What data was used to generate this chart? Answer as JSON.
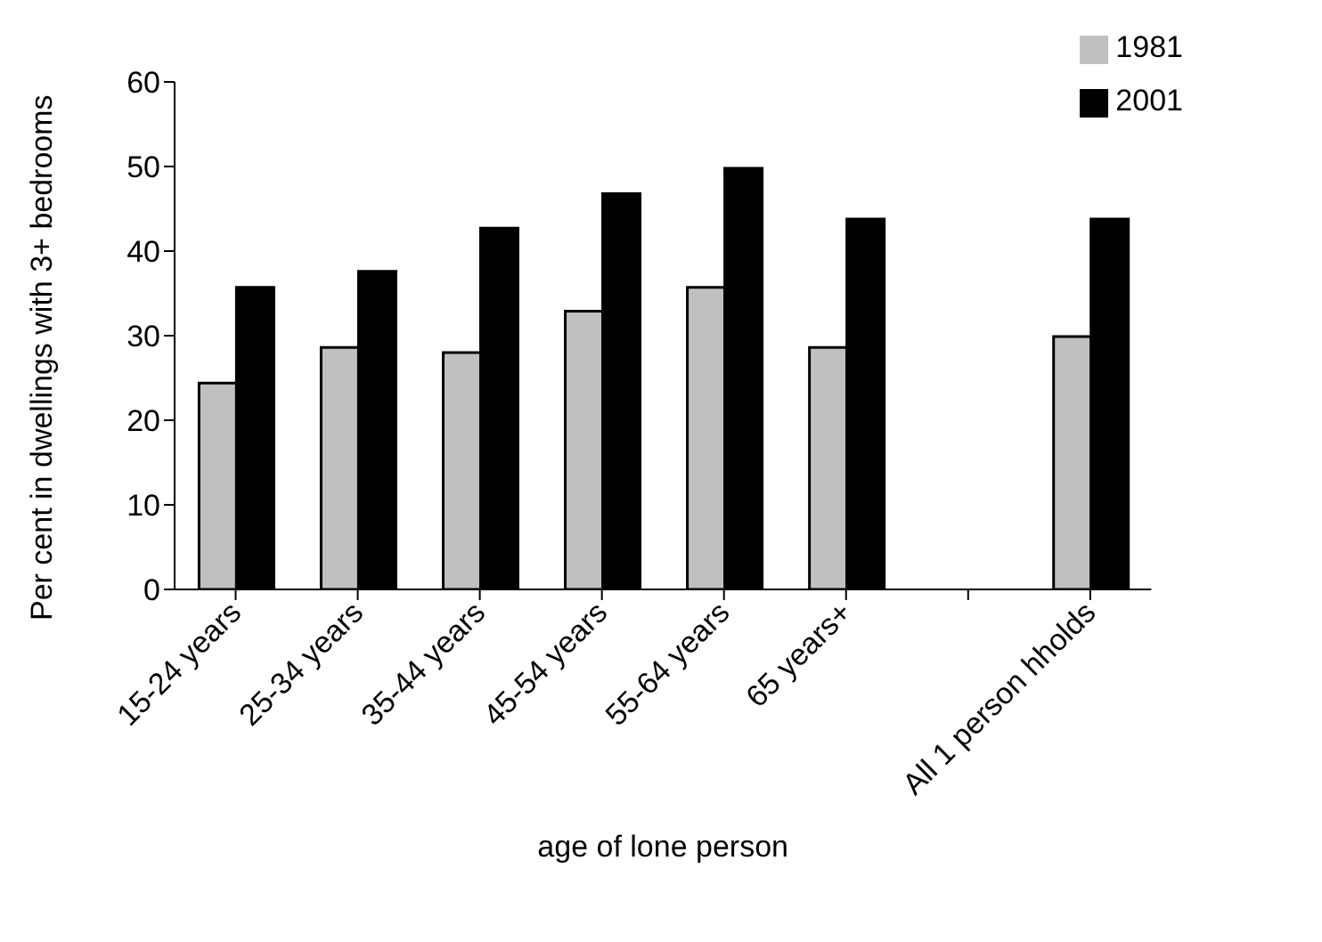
{
  "chart_data": {
    "type": "bar",
    "xlabel": "age of lone person",
    "ylabel": "Per cent in dwellings with 3+ bedrooms",
    "categories": [
      "15-24 years",
      "25-34 years",
      "35-44 years",
      "45-54 years",
      "55-64 years",
      "65 years+",
      null,
      "All 1 person hholds"
    ],
    "series": [
      {
        "name": "1981",
        "color": "#c0c0c0",
        "values": [
          24.4,
          28.6,
          28.0,
          32.9,
          35.7,
          28.6,
          null,
          29.9
        ]
      },
      {
        "name": "2001",
        "color": "#000000",
        "values": [
          35.7,
          37.6,
          42.7,
          46.8,
          49.8,
          43.8,
          null,
          43.8
        ]
      }
    ],
    "ylim": [
      0,
      60
    ],
    "yticks": [
      0,
      10,
      20,
      30,
      40,
      50,
      60
    ],
    "grid": false,
    "legend": "top right"
  }
}
